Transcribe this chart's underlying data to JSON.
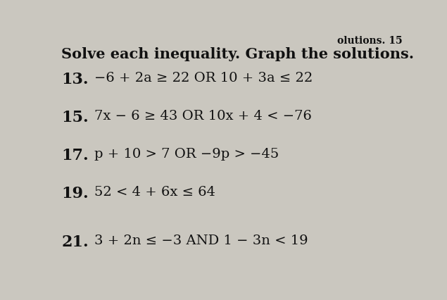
{
  "background_color": "#cac7bf",
  "header_partial": "olutions. 15",
  "title_text": "Solve each inequality. Graph the solutions.",
  "title_fontsize": 15,
  "title_bold": true,
  "problems": [
    {
      "number": "13.",
      "text": "−6 + 2a ≥ 22 OR 10 + 3a ≤ 22"
    },
    {
      "number": "15.",
      "text": "7x − 6 ≥ 43 OR 10x + 4 < −76"
    },
    {
      "number": "17.",
      "text": "p + 10 > 7 OR −9p > −45"
    },
    {
      "number": "19.",
      "text": "52 < 4 + 6x ≤ 64"
    },
    {
      "number": "21.",
      "text": "3 + 2n ≤ −3 AND 1 − 3n < 19"
    }
  ],
  "number_fontsize": 16,
  "text_fontsize": 14,
  "text_color": "#111111",
  "number_color": "#111111",
  "header_fontsize": 10
}
